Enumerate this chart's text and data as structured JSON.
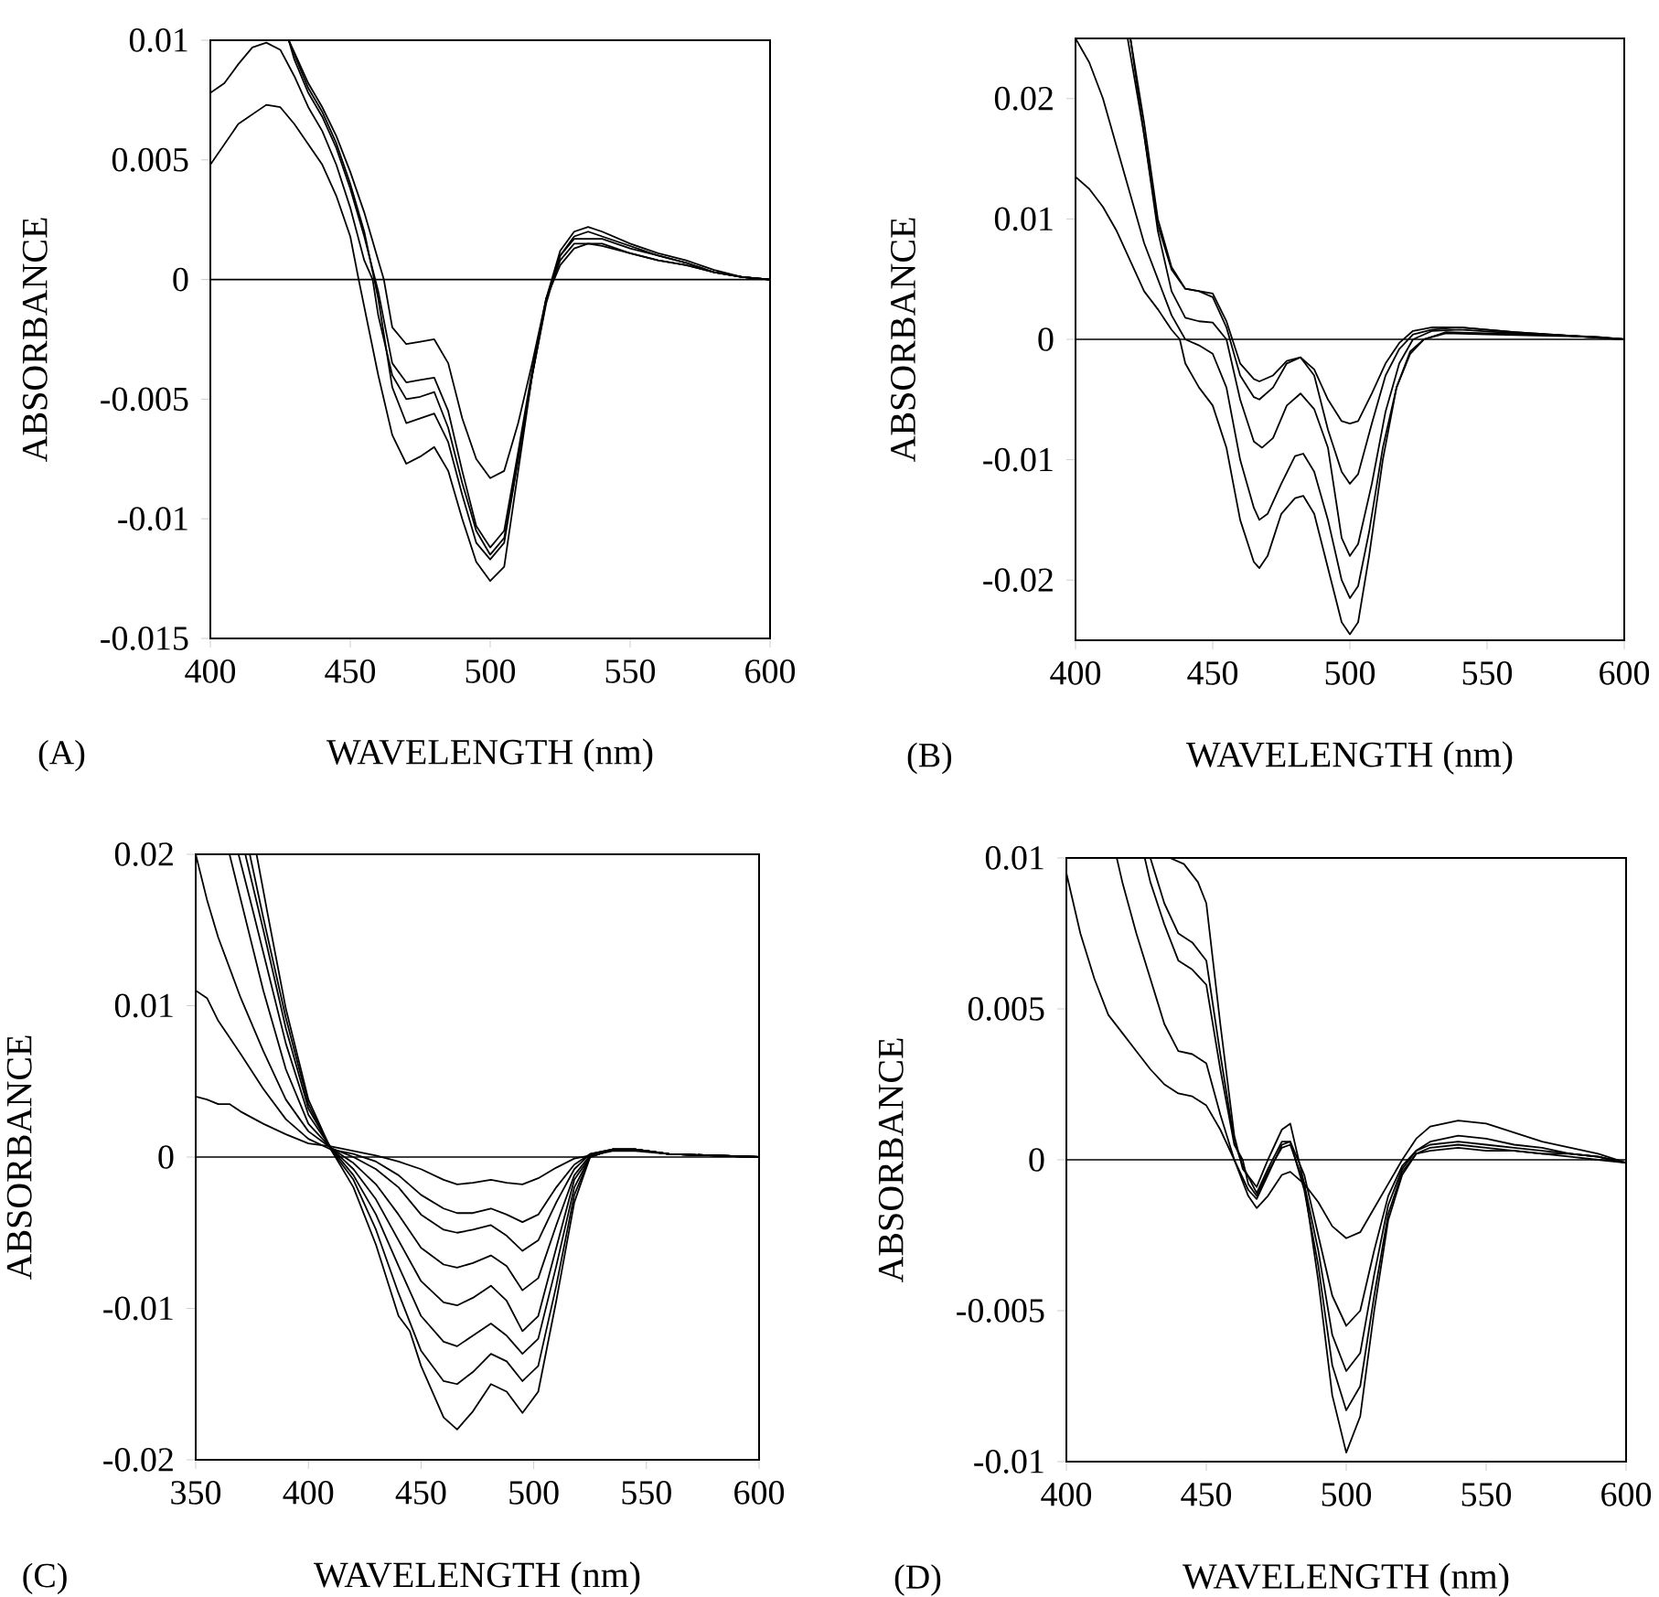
{
  "chart_data": [
    {
      "type": "line",
      "xlabel": "WAVELENGTH (nm)",
      "ylabel": "ABSORBANCE",
      "annotations": [
        "(A)"
      ],
      "xlim": [
        400,
        600
      ],
      "xticks": [
        400,
        450,
        500,
        550,
        600
      ],
      "ylim": [
        -0.015,
        0.01
      ],
      "yticks": [
        -0.015,
        -0.01,
        -0.005,
        0,
        0.005,
        0.01
      ],
      "line_style": "solid",
      "ref_lines": [
        {
          "axis": "y",
          "value": 0
        }
      ],
      "series": [
        {
          "color": "#000000",
          "x": [
            400,
            410,
            420,
            425,
            430,
            440,
            445,
            450,
            453,
            460,
            465,
            470,
            475,
            480,
            485,
            490,
            495,
            500,
            505,
            510,
            515,
            520,
            525,
            530,
            540,
            550,
            560,
            570,
            580,
            590,
            600
          ],
          "values": [
            0.0048,
            0.0065,
            0.0073,
            0.0072,
            0.0065,
            0.0048,
            0.0035,
            0.0018,
            0.0,
            -0.004,
            -0.0065,
            -0.0077,
            -0.0074,
            -0.007,
            -0.008,
            -0.01,
            -0.0118,
            -0.0126,
            -0.012,
            -0.008,
            -0.004,
            -0.0008,
            0.0008,
            0.0015,
            0.0015,
            0.0011,
            0.0008,
            0.0006,
            0.0003,
            0.0001,
            0.0
          ]
        },
        {
          "color": "#000000",
          "x": [
            400,
            405,
            410,
            415,
            420,
            425,
            430,
            435,
            440,
            445,
            450,
            455,
            458,
            460,
            465,
            470,
            475,
            480,
            485,
            490,
            495,
            500,
            505,
            510,
            515,
            520,
            525,
            530,
            535,
            540,
            550,
            560,
            570,
            580,
            590,
            600
          ],
          "values": [
            0.0078,
            0.0082,
            0.009,
            0.0097,
            0.0099,
            0.0096,
            0.0085,
            0.0072,
            0.0062,
            0.0048,
            0.003,
            0.0008,
            0.0,
            -0.0015,
            -0.004,
            -0.005,
            -0.0049,
            -0.0047,
            -0.0062,
            -0.0085,
            -0.0105,
            -0.0115,
            -0.0108,
            -0.0075,
            -0.004,
            -0.001,
            0.001,
            0.0018,
            0.002,
            0.0018,
            0.0014,
            0.001,
            0.0007,
            0.0003,
            0.0001,
            0.0
          ]
        },
        {
          "color": "#000000",
          "x": [
            428,
            430,
            435,
            440,
            445,
            450,
            455,
            460,
            465,
            470,
            475,
            480,
            485,
            490,
            495,
            500,
            505,
            510,
            515,
            520,
            525,
            530,
            535,
            540,
            550,
            560,
            570,
            580,
            590,
            600
          ],
          "values": [
            0.01,
            0.0092,
            0.0078,
            0.0068,
            0.0055,
            0.0038,
            0.0018,
            -0.0005,
            -0.0035,
            -0.0043,
            -0.0042,
            -0.0041,
            -0.0055,
            -0.008,
            -0.0103,
            -0.0112,
            -0.0105,
            -0.0072,
            -0.0038,
            -0.0008,
            0.0012,
            0.002,
            0.0022,
            0.002,
            0.0015,
            0.0011,
            0.0008,
            0.0004,
            0.0001,
            0.0
          ]
        },
        {
          "color": "#000000",
          "x": [
            428,
            430,
            435,
            440,
            445,
            450,
            455,
            460,
            465,
            470,
            475,
            480,
            485,
            490,
            495,
            500,
            505,
            510,
            515,
            520,
            525,
            530,
            540,
            550,
            560,
            570,
            580,
            590,
            600
          ],
          "values": [
            0.01,
            0.0094,
            0.008,
            0.007,
            0.0057,
            0.004,
            0.002,
            -0.0008,
            -0.0045,
            -0.006,
            -0.0058,
            -0.0056,
            -0.0068,
            -0.009,
            -0.011,
            -0.0117,
            -0.011,
            -0.0075,
            -0.004,
            -0.0009,
            0.001,
            0.0017,
            0.0017,
            0.0013,
            0.001,
            0.0007,
            0.0003,
            0.0001,
            0.0
          ]
        },
        {
          "color": "#000000",
          "x": [
            428,
            430,
            435,
            440,
            445,
            450,
            455,
            460,
            462,
            465,
            470,
            475,
            480,
            485,
            490,
            495,
            500,
            505,
            510,
            515,
            520,
            525,
            530,
            535,
            540,
            550,
            560,
            570,
            580,
            590,
            600
          ],
          "values": [
            0.01,
            0.0095,
            0.0082,
            0.0072,
            0.006,
            0.0045,
            0.0028,
            0.0008,
            0.0,
            -0.002,
            -0.0027,
            -0.0026,
            -0.0025,
            -0.0035,
            -0.0058,
            -0.0075,
            -0.0083,
            -0.008,
            -0.006,
            -0.0035,
            -0.0008,
            0.0006,
            0.0013,
            0.0015,
            0.0014,
            0.0011,
            0.0008,
            0.0006,
            0.0003,
            0.0001,
            0.0
          ]
        }
      ]
    },
    {
      "type": "line",
      "xlabel": "WAVELENGTH (nm)",
      "ylabel": "ABSORBANCE",
      "annotations": [
        "(B)"
      ],
      "xlim": [
        400,
        600
      ],
      "xticks": [
        400,
        450,
        500,
        550,
        600
      ],
      "ylim": [
        -0.025,
        0.025
      ],
      "yticks": [
        -0.02,
        -0.01,
        0,
        0.01,
        0.02
      ],
      "line_style": "solid",
      "ref_lines": [
        {
          "axis": "y",
          "value": 0
        }
      ],
      "series": [
        {
          "color": "#000000",
          "x": [
            400,
            405,
            410,
            415,
            420,
            425,
            430,
            435,
            438,
            440,
            445,
            450,
            455,
            460,
            465,
            467,
            470,
            475,
            480,
            483,
            487,
            492,
            497,
            500,
            503,
            507,
            512,
            517,
            522,
            527,
            535,
            550,
            570,
            590,
            600
          ],
          "values": [
            0.0135,
            0.0125,
            0.011,
            0.009,
            0.0065,
            0.004,
            0.0025,
            0.0008,
            0.0,
            -0.002,
            -0.004,
            -0.0055,
            -0.009,
            -0.015,
            -0.0185,
            -0.019,
            -0.018,
            -0.0145,
            -0.0132,
            -0.013,
            -0.0145,
            -0.019,
            -0.0235,
            -0.0245,
            -0.0235,
            -0.018,
            -0.01,
            -0.004,
            -0.001,
            0.0,
            0.0005,
            0.0004,
            0.0003,
            0.0002,
            0.0
          ]
        },
        {
          "color": "#000000",
          "x": [
            400,
            405,
            410,
            415,
            420,
            425,
            430,
            435,
            440,
            445,
            450,
            455,
            460,
            465,
            467,
            470,
            475,
            480,
            483,
            487,
            492,
            497,
            500,
            503,
            507,
            512,
            517,
            522,
            527,
            535,
            550,
            570,
            590,
            600
          ],
          "values": [
            0.025,
            0.023,
            0.02,
            0.016,
            0.012,
            0.008,
            0.005,
            0.002,
            0.0,
            -0.0005,
            -0.0012,
            -0.004,
            -0.01,
            -0.014,
            -0.015,
            -0.0145,
            -0.012,
            -0.0097,
            -0.0095,
            -0.011,
            -0.015,
            -0.02,
            -0.0215,
            -0.0205,
            -0.016,
            -0.009,
            -0.004,
            -0.0012,
            0.0,
            0.0006,
            0.0005,
            0.0004,
            0.0002,
            0.0
          ]
        },
        {
          "color": "#000000",
          "x": [
            420,
            425,
            430,
            435,
            440,
            445,
            450,
            455,
            460,
            465,
            468,
            472,
            477,
            482,
            487,
            492,
            497,
            500,
            503,
            508,
            513,
            518,
            523,
            530,
            540,
            560,
            580,
            600
          ],
          "values": [
            0.025,
            0.017,
            0.009,
            0.004,
            0.0018,
            0.0015,
            0.0014,
            0.0,
            -0.005,
            -0.0085,
            -0.009,
            -0.0082,
            -0.0055,
            -0.0045,
            -0.0058,
            -0.009,
            -0.0165,
            -0.018,
            -0.017,
            -0.012,
            -0.006,
            -0.002,
            0.0,
            0.0007,
            0.0008,
            0.0005,
            0.0003,
            0.0
          ]
        },
        {
          "color": "#000000",
          "x": [
            420,
            425,
            430,
            435,
            440,
            445,
            450,
            455,
            460,
            465,
            467,
            472,
            477,
            482,
            487,
            492,
            497,
            500,
            503,
            508,
            513,
            518,
            523,
            530,
            540,
            560,
            580,
            600
          ],
          "values": [
            0.025,
            0.018,
            0.01,
            0.006,
            0.0042,
            0.004,
            0.0035,
            0.001,
            -0.003,
            -0.0048,
            -0.005,
            -0.004,
            -0.002,
            -0.0015,
            -0.003,
            -0.0075,
            -0.011,
            -0.012,
            -0.0112,
            -0.007,
            -0.003,
            -0.0008,
            0.0004,
            0.0008,
            0.001,
            0.0006,
            0.0003,
            0.0
          ]
        },
        {
          "color": "#000000",
          "x": [
            419,
            425,
            430,
            435,
            440,
            445,
            450,
            455,
            460,
            465,
            467,
            472,
            477,
            482,
            487,
            492,
            497,
            500,
            503,
            508,
            513,
            518,
            523,
            530,
            540,
            560,
            580,
            600
          ],
          "values": [
            0.025,
            0.017,
            0.0095,
            0.0058,
            0.0042,
            0.004,
            0.0038,
            0.0015,
            -0.002,
            -0.0033,
            -0.0035,
            -0.003,
            -0.0018,
            -0.0015,
            -0.0025,
            -0.005,
            -0.0068,
            -0.007,
            -0.0068,
            -0.0045,
            -0.002,
            -0.0003,
            0.0007,
            0.001,
            0.001,
            0.0006,
            0.0003,
            0.0
          ]
        }
      ]
    },
    {
      "type": "line",
      "xlabel": "WAVELENGTH (nm)",
      "ylabel": "ABSORBANCE",
      "annotations": [
        "(C)"
      ],
      "xlim": [
        350,
        600
      ],
      "xticks": [
        350,
        400,
        450,
        500,
        550,
        600
      ],
      "ylim": [
        -0.02,
        0.02
      ],
      "yticks": [
        -0.02,
        -0.01,
        0,
        0.01,
        0.02
      ],
      "line_style": "solid",
      "ref_lines": [
        {
          "axis": "y",
          "value": 0
        }
      ],
      "series": [
        {
          "color": "#000000",
          "x": [
            350,
            355,
            360,
            365,
            370,
            380,
            390,
            400,
            410,
            420,
            430,
            440,
            450,
            460,
            466,
            473,
            481,
            488,
            495,
            502,
            510,
            518,
            525,
            535,
            545,
            560,
            580,
            600
          ],
          "values": [
            0.004,
            0.0038,
            0.0035,
            0.0035,
            0.003,
            0.0022,
            0.0015,
            0.0009,
            0.0007,
            0.0004,
            0.0001,
            -0.0003,
            -0.0008,
            -0.0015,
            -0.0018,
            -0.0017,
            -0.0015,
            -0.0017,
            -0.0018,
            -0.0014,
            -0.0007,
            -0.0001,
            0.0001,
            0.0004,
            0.0004,
            0.0002,
            0.0001,
            0.0
          ]
        },
        {
          "color": "#000000",
          "x": [
            350,
            355,
            360,
            370,
            380,
            390,
            400,
            410,
            420,
            430,
            440,
            450,
            460,
            466,
            473,
            481,
            488,
            495,
            502,
            510,
            518,
            525,
            535,
            545,
            560,
            580,
            600
          ],
          "values": [
            0.011,
            0.0105,
            0.009,
            0.0068,
            0.0045,
            0.0025,
            0.0012,
            0.0005,
            0.0002,
            -0.0003,
            -0.0012,
            -0.0025,
            -0.0034,
            -0.0037,
            -0.0037,
            -0.0034,
            -0.0038,
            -0.0043,
            -0.0038,
            -0.002,
            -0.0005,
            0.0002,
            0.0005,
            0.0005,
            0.0002,
            0.0001,
            0.0
          ]
        },
        {
          "color": "#000000",
          "x": [
            350,
            355,
            360,
            370,
            380,
            390,
            400,
            410,
            420,
            430,
            440,
            450,
            460,
            466,
            473,
            481,
            488,
            495,
            502,
            510,
            518,
            525,
            535,
            545,
            560,
            580,
            600
          ],
          "values": [
            0.02,
            0.017,
            0.0145,
            0.0105,
            0.007,
            0.0038,
            0.0017,
            0.0006,
            0.0,
            -0.0008,
            -0.002,
            -0.0038,
            -0.0048,
            -0.005,
            -0.0048,
            -0.0045,
            -0.0052,
            -0.0062,
            -0.0055,
            -0.003,
            -0.0008,
            0.0002,
            0.0005,
            0.0005,
            0.0002,
            0.0001,
            0.0
          ]
        },
        {
          "color": "#000000",
          "x": [
            365,
            370,
            380,
            390,
            400,
            410,
            420,
            430,
            440,
            450,
            460,
            466,
            473,
            481,
            488,
            495,
            502,
            510,
            518,
            525,
            535,
            545,
            560,
            580,
            600
          ],
          "values": [
            0.02,
            0.017,
            0.011,
            0.0058,
            0.0022,
            0.0006,
            -0.0004,
            -0.0018,
            -0.0038,
            -0.006,
            -0.0071,
            -0.0073,
            -0.007,
            -0.0065,
            -0.0072,
            -0.0088,
            -0.008,
            -0.0045,
            -0.0012,
            0.0001,
            0.0005,
            0.0005,
            0.0002,
            0.0001,
            0.0
          ]
        },
        {
          "color": "#000000",
          "x": [
            369,
            375,
            380,
            390,
            400,
            410,
            420,
            430,
            440,
            450,
            460,
            466,
            473,
            481,
            488,
            495,
            502,
            510,
            518,
            525,
            535,
            545,
            560,
            580,
            600
          ],
          "values": [
            0.02,
            0.0165,
            0.0135,
            0.0075,
            0.0028,
            0.0006,
            -0.0008,
            -0.0028,
            -0.0055,
            -0.0082,
            -0.0096,
            -0.0098,
            -0.0093,
            -0.0085,
            -0.0095,
            -0.0115,
            -0.0105,
            -0.006,
            -0.0015,
            0.0,
            0.0005,
            0.0005,
            0.0002,
            0.0001,
            0.0
          ]
        },
        {
          "color": "#000000",
          "x": [
            372,
            380,
            390,
            400,
            410,
            420,
            430,
            440,
            450,
            460,
            466,
            473,
            481,
            488,
            495,
            502,
            510,
            518,
            525,
            535,
            545,
            560,
            580,
            600
          ],
          "values": [
            0.02,
            0.015,
            0.0085,
            0.0032,
            0.0006,
            -0.0012,
            -0.0038,
            -0.0072,
            -0.0105,
            -0.0122,
            -0.0125,
            -0.0118,
            -0.011,
            -0.0118,
            -0.013,
            -0.012,
            -0.0072,
            -0.002,
            0.0,
            0.0005,
            0.0005,
            0.0002,
            0.0001,
            0.0
          ]
        },
        {
          "color": "#000000",
          "x": [
            374,
            380,
            390,
            400,
            410,
            420,
            430,
            440,
            450,
            460,
            466,
            473,
            481,
            488,
            495,
            502,
            510,
            518,
            525,
            535,
            545,
            560,
            580,
            600
          ],
          "values": [
            0.02,
            0.0158,
            0.0092,
            0.0035,
            0.0005,
            -0.0015,
            -0.0048,
            -0.009,
            -0.0128,
            -0.0148,
            -0.015,
            -0.0142,
            -0.013,
            -0.0135,
            -0.0148,
            -0.0138,
            -0.0085,
            -0.0025,
            0.0,
            0.0005,
            0.0005,
            0.0002,
            0.0001,
            0.0
          ]
        },
        {
          "color": "#000000",
          "x": [
            377,
            382,
            390,
            400,
            410,
            420,
            430,
            440,
            445,
            450,
            460,
            466,
            473,
            481,
            488,
            495,
            502,
            510,
            518,
            525,
            535,
            545,
            560,
            580,
            600
          ],
          "values": [
            0.02,
            0.016,
            0.0098,
            0.0038,
            0.0005,
            -0.002,
            -0.0058,
            -0.0105,
            -0.0115,
            -0.0138,
            -0.0172,
            -0.018,
            -0.0168,
            -0.015,
            -0.0155,
            -0.0169,
            -0.0155,
            -0.0095,
            -0.003,
            0.0,
            0.0005,
            0.0005,
            0.0002,
            0.0001,
            0.0
          ]
        }
      ]
    },
    {
      "type": "line",
      "xlabel": "WAVELENGTH (nm)",
      "ylabel": "ABSORBANCE",
      "annotations": [
        "(D)"
      ],
      "xlim": [
        400,
        600
      ],
      "xticks": [
        400,
        450,
        500,
        550,
        600
      ],
      "ylim": [
        -0.01,
        0.01
      ],
      "yticks": [
        -0.01,
        -0.005,
        0,
        0.005,
        0.01
      ],
      "line_style": "solid",
      "ref_lines": [
        {
          "axis": "y",
          "value": 0
        }
      ],
      "series": [
        {
          "color": "#000000",
          "x": [
            400,
            405,
            410,
            415,
            420,
            425,
            430,
            435,
            440,
            445,
            450,
            455,
            460,
            465,
            468,
            472,
            477,
            480,
            485,
            490,
            495,
            500,
            505,
            510,
            515,
            520,
            525,
            530,
            540,
            550,
            560,
            570,
            580,
            590,
            600
          ],
          "values": [
            0.0095,
            0.0075,
            0.006,
            0.0048,
            0.0042,
            0.0036,
            0.003,
            0.0025,
            0.0022,
            0.0021,
            0.0018,
            0.001,
            0.0,
            -0.0012,
            -0.0016,
            -0.0012,
            -0.0005,
            -0.0004,
            -0.0008,
            -0.0014,
            -0.0022,
            -0.0026,
            -0.0024,
            -0.0016,
            -0.0008,
            0.0,
            0.0007,
            0.0011,
            0.0013,
            0.0012,
            0.0009,
            0.0006,
            0.0004,
            0.0002,
            -0.0001
          ]
        },
        {
          "color": "#000000",
          "x": [
            418,
            420,
            425,
            430,
            435,
            440,
            445,
            450,
            455,
            460,
            465,
            468,
            472,
            477,
            480,
            485,
            490,
            495,
            500,
            505,
            510,
            515,
            520,
            525,
            530,
            540,
            550,
            560,
            570,
            580,
            590,
            600
          ],
          "values": [
            0.01,
            0.0092,
            0.0075,
            0.006,
            0.0045,
            0.0036,
            0.0035,
            0.0032,
            0.0015,
            0.0,
            -0.001,
            -0.0013,
            -0.0005,
            0.0005,
            0.0006,
            -0.0005,
            -0.0025,
            -0.0045,
            -0.0055,
            -0.005,
            -0.003,
            -0.0012,
            -0.0002,
            0.0003,
            0.0006,
            0.0008,
            0.0007,
            0.0005,
            0.0004,
            0.0002,
            0.0001,
            -0.0001
          ]
        },
        {
          "color": "#000000",
          "x": [
            428,
            430,
            435,
            440,
            445,
            450,
            455,
            460,
            463,
            465,
            468,
            472,
            477,
            480,
            485,
            490,
            495,
            500,
            505,
            510,
            515,
            520,
            525,
            530,
            540,
            550,
            560,
            570,
            580,
            590,
            600
          ],
          "values": [
            0.01,
            0.0092,
            0.0078,
            0.0066,
            0.0063,
            0.0058,
            0.003,
            0.0005,
            0.0,
            -0.0008,
            -0.0012,
            -0.0004,
            0.0004,
            0.0005,
            -0.0008,
            -0.003,
            -0.0058,
            -0.007,
            -0.0064,
            -0.0038,
            -0.0015,
            -0.0003,
            0.0003,
            0.0005,
            0.0006,
            0.0005,
            0.0004,
            0.0003,
            0.0002,
            0.0001,
            -0.0001
          ]
        },
        {
          "color": "#000000",
          "x": [
            430,
            435,
            440,
            445,
            450,
            455,
            460,
            463,
            468,
            472,
            477,
            480,
            485,
            490,
            495,
            500,
            505,
            510,
            515,
            520,
            525,
            530,
            540,
            550,
            560,
            570,
            580,
            590,
            600
          ],
          "values": [
            0.01,
            0.0085,
            0.0075,
            0.0072,
            0.0066,
            0.0035,
            0.0006,
            -0.0002,
            -0.0011,
            -0.0003,
            0.0006,
            0.0006,
            -0.001,
            -0.0035,
            -0.0068,
            -0.0083,
            -0.0075,
            -0.0045,
            -0.0018,
            -0.0004,
            0.0002,
            0.0004,
            0.0005,
            0.0004,
            0.0003,
            0.0002,
            0.0002,
            0.0001,
            -0.0001
          ]
        },
        {
          "color": "#000000",
          "x": [
            437,
            442,
            447,
            450,
            455,
            460,
            463,
            468,
            472,
            477,
            480,
            485,
            490,
            495,
            500,
            505,
            510,
            515,
            520,
            525,
            530,
            540,
            550,
            560,
            570,
            580,
            590,
            600
          ],
          "values": [
            0.01,
            0.0098,
            0.0092,
            0.0085,
            0.0045,
            0.0008,
            -0.0003,
            -0.0009,
            0.0,
            0.001,
            0.0012,
            -0.0008,
            -0.004,
            -0.0078,
            -0.0097,
            -0.0085,
            -0.005,
            -0.002,
            -0.0005,
            0.0002,
            0.0003,
            0.0004,
            0.0003,
            0.0003,
            0.0002,
            0.0001,
            0.0,
            -0.0001
          ]
        }
      ]
    }
  ]
}
